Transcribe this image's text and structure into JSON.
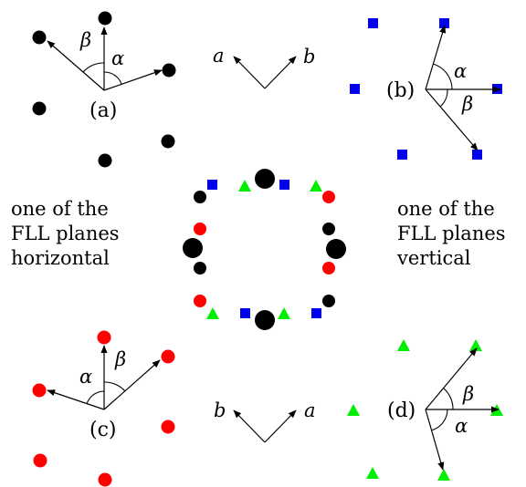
{
  "colors": {
    "black": "#000000",
    "red": "#ff0000",
    "blue": "#0000ee",
    "green": "#00ee00"
  },
  "panel_a": {
    "label": "(a)",
    "alpha": "α",
    "beta": "β"
  },
  "panel_b": {
    "label": "(b)",
    "alpha": "α",
    "beta": "β"
  },
  "panel_c": {
    "label": "(c)",
    "alpha": "α",
    "beta": "β"
  },
  "panel_d": {
    "label": "(d)",
    "alpha": "α",
    "beta": "β"
  },
  "axes_top": {
    "a": "a",
    "b": "b"
  },
  "axes_bottom": {
    "a": "a",
    "b": "b"
  },
  "left_note": {
    "line1": "one of the",
    "line2": "FLL planes",
    "line3": "horizontal"
  },
  "right_note": {
    "line1": "one of the",
    "line2": "FLL planes",
    "line3": "vertical"
  }
}
